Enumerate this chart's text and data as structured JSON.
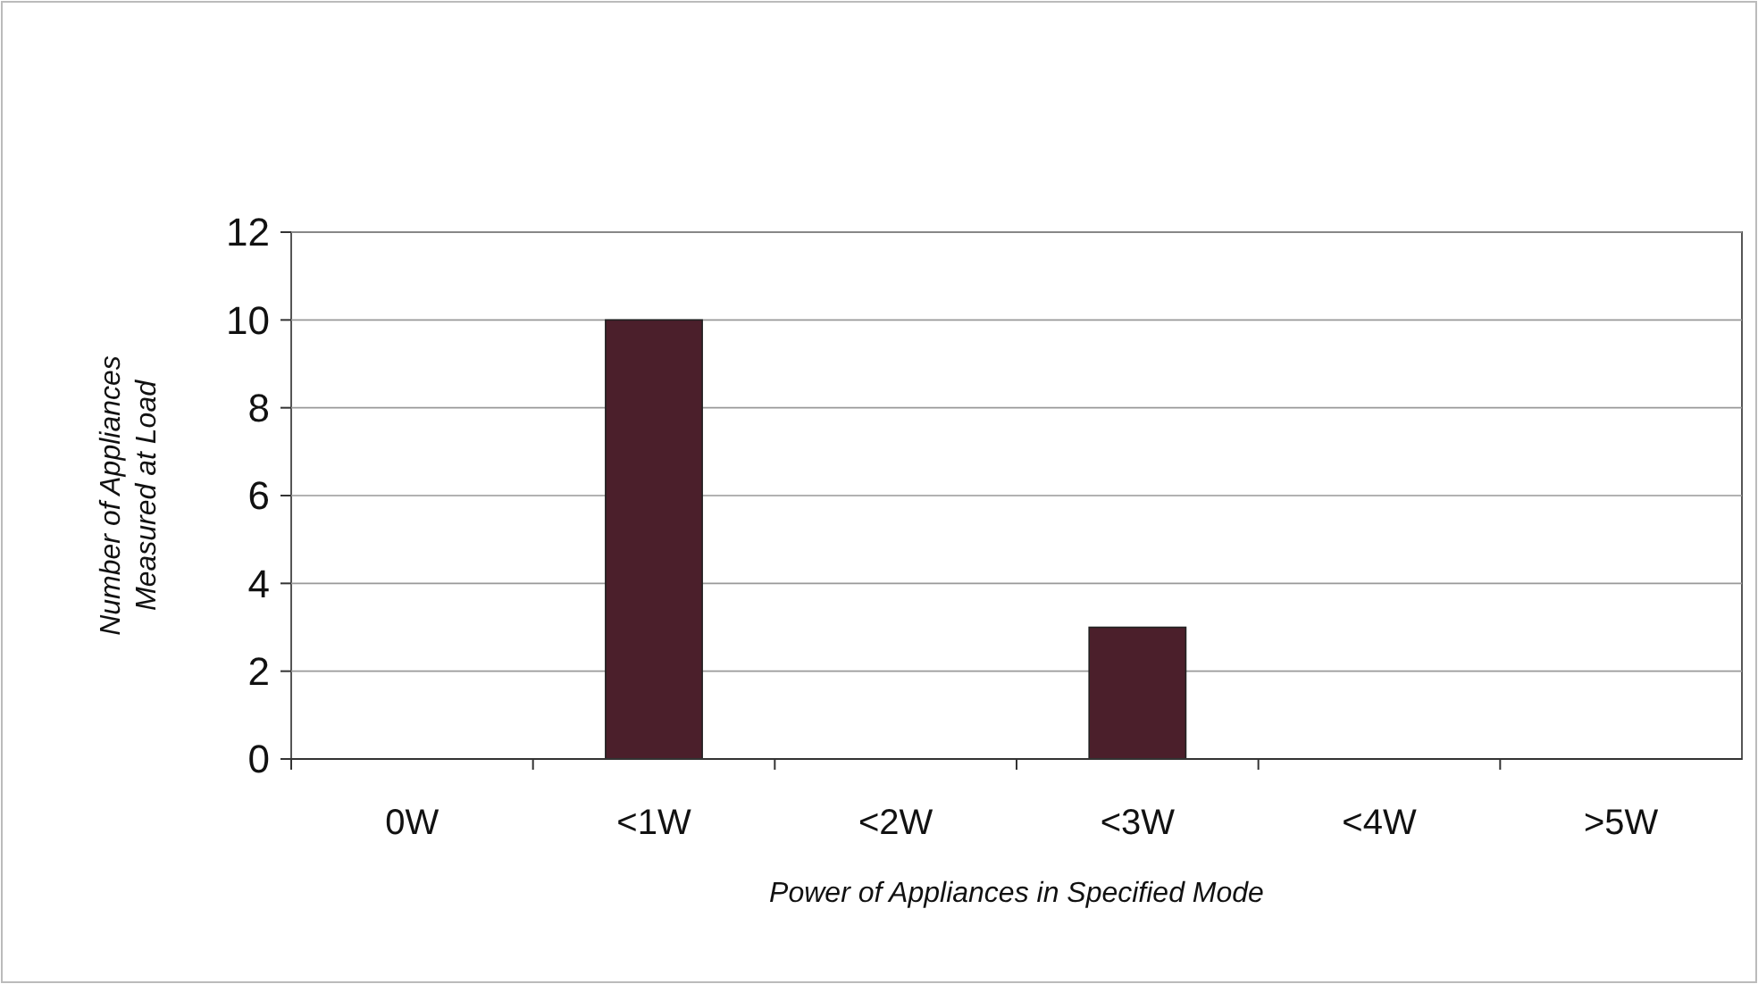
{
  "chart_data": {
    "type": "bar",
    "xlabel": "Power of Appliances in Specified Mode",
    "ylabel": "Number of Appliances Measured at Load",
    "categories": [
      "0W",
      "<1W",
      "<2W",
      "<3W",
      "<4W",
      ">5W"
    ],
    "values": [
      0,
      10,
      0,
      3,
      0,
      0
    ],
    "color": "#4b1f2b",
    "ylim": [
      0,
      12
    ],
    "yticks": [
      0,
      2,
      4,
      6,
      8,
      10,
      12
    ],
    "grid": "y"
  }
}
